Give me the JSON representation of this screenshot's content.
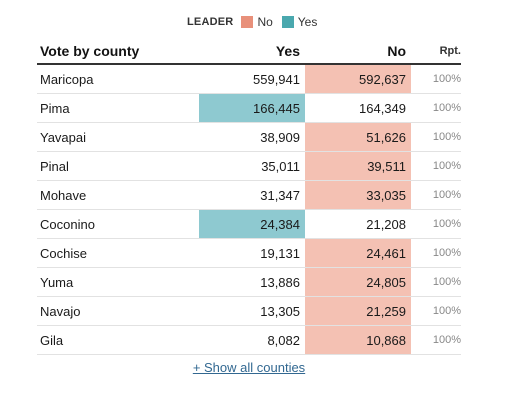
{
  "legend": {
    "title": "LEADER",
    "items": [
      {
        "label": "No",
        "color": "#e8907a"
      },
      {
        "label": "Yes",
        "color": "#4aa8ae"
      }
    ]
  },
  "colors": {
    "yes_fill": "#8ec9d0",
    "no_fill": "#f4c1b3"
  },
  "table": {
    "headers": {
      "name": "Vote by county",
      "yes": "Yes",
      "no": "No",
      "rpt": "Rpt."
    },
    "rows": [
      {
        "county": "Maricopa",
        "yes": "559,941",
        "no": "592,637",
        "rpt": "100%",
        "leader": "no"
      },
      {
        "county": "Pima",
        "yes": "166,445",
        "no": "164,349",
        "rpt": "100%",
        "leader": "yes"
      },
      {
        "county": "Yavapai",
        "yes": "38,909",
        "no": "51,626",
        "rpt": "100%",
        "leader": "no"
      },
      {
        "county": "Pinal",
        "yes": "35,011",
        "no": "39,511",
        "rpt": "100%",
        "leader": "no"
      },
      {
        "county": "Mohave",
        "yes": "31,347",
        "no": "33,035",
        "rpt": "100%",
        "leader": "no"
      },
      {
        "county": "Coconino",
        "yes": "24,384",
        "no": "21,208",
        "rpt": "100%",
        "leader": "yes"
      },
      {
        "county": "Cochise",
        "yes": "19,131",
        "no": "24,461",
        "rpt": "100%",
        "leader": "no"
      },
      {
        "county": "Yuma",
        "yes": "13,886",
        "no": "24,805",
        "rpt": "100%",
        "leader": "no"
      },
      {
        "county": "Navajo",
        "yes": "13,305",
        "no": "21,259",
        "rpt": "100%",
        "leader": "no"
      },
      {
        "county": "Gila",
        "yes": "8,082",
        "no": "10,868",
        "rpt": "100%",
        "leader": "no"
      }
    ]
  },
  "show_all_label": "+ Show all counties"
}
